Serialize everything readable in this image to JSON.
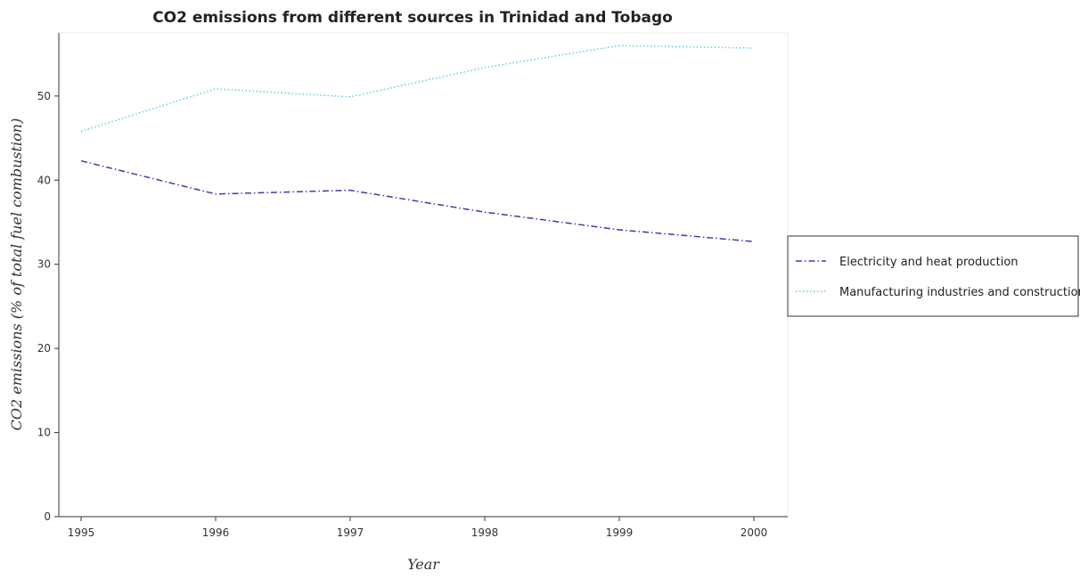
{
  "chart_data": {
    "type": "line",
    "title": "CO2 emissions from different sources in Trinidad and Tobago",
    "xlabel": "Year",
    "ylabel": "CO2 emissions (% of total fuel combustion)",
    "categories": [
      "1995",
      "1996",
      "1997",
      "1998",
      "1999",
      "2000"
    ],
    "ylim": [
      0,
      57.5
    ],
    "yticks": [
      0,
      10,
      20,
      30,
      40,
      50
    ],
    "grid": false,
    "legend_position": "right",
    "series": [
      {
        "name": "Electricity and heat production",
        "color": "#3d3dab",
        "dash": "dash-dot",
        "values": [
          42.3,
          38.35,
          38.8,
          36.2,
          34.1,
          32.7
        ]
      },
      {
        "name": "Manufacturing industries and construction",
        "color": "#5cd0e0",
        "dash": "dotted",
        "values": [
          45.8,
          50.85,
          49.9,
          53.4,
          56.0,
          55.7
        ]
      }
    ]
  }
}
